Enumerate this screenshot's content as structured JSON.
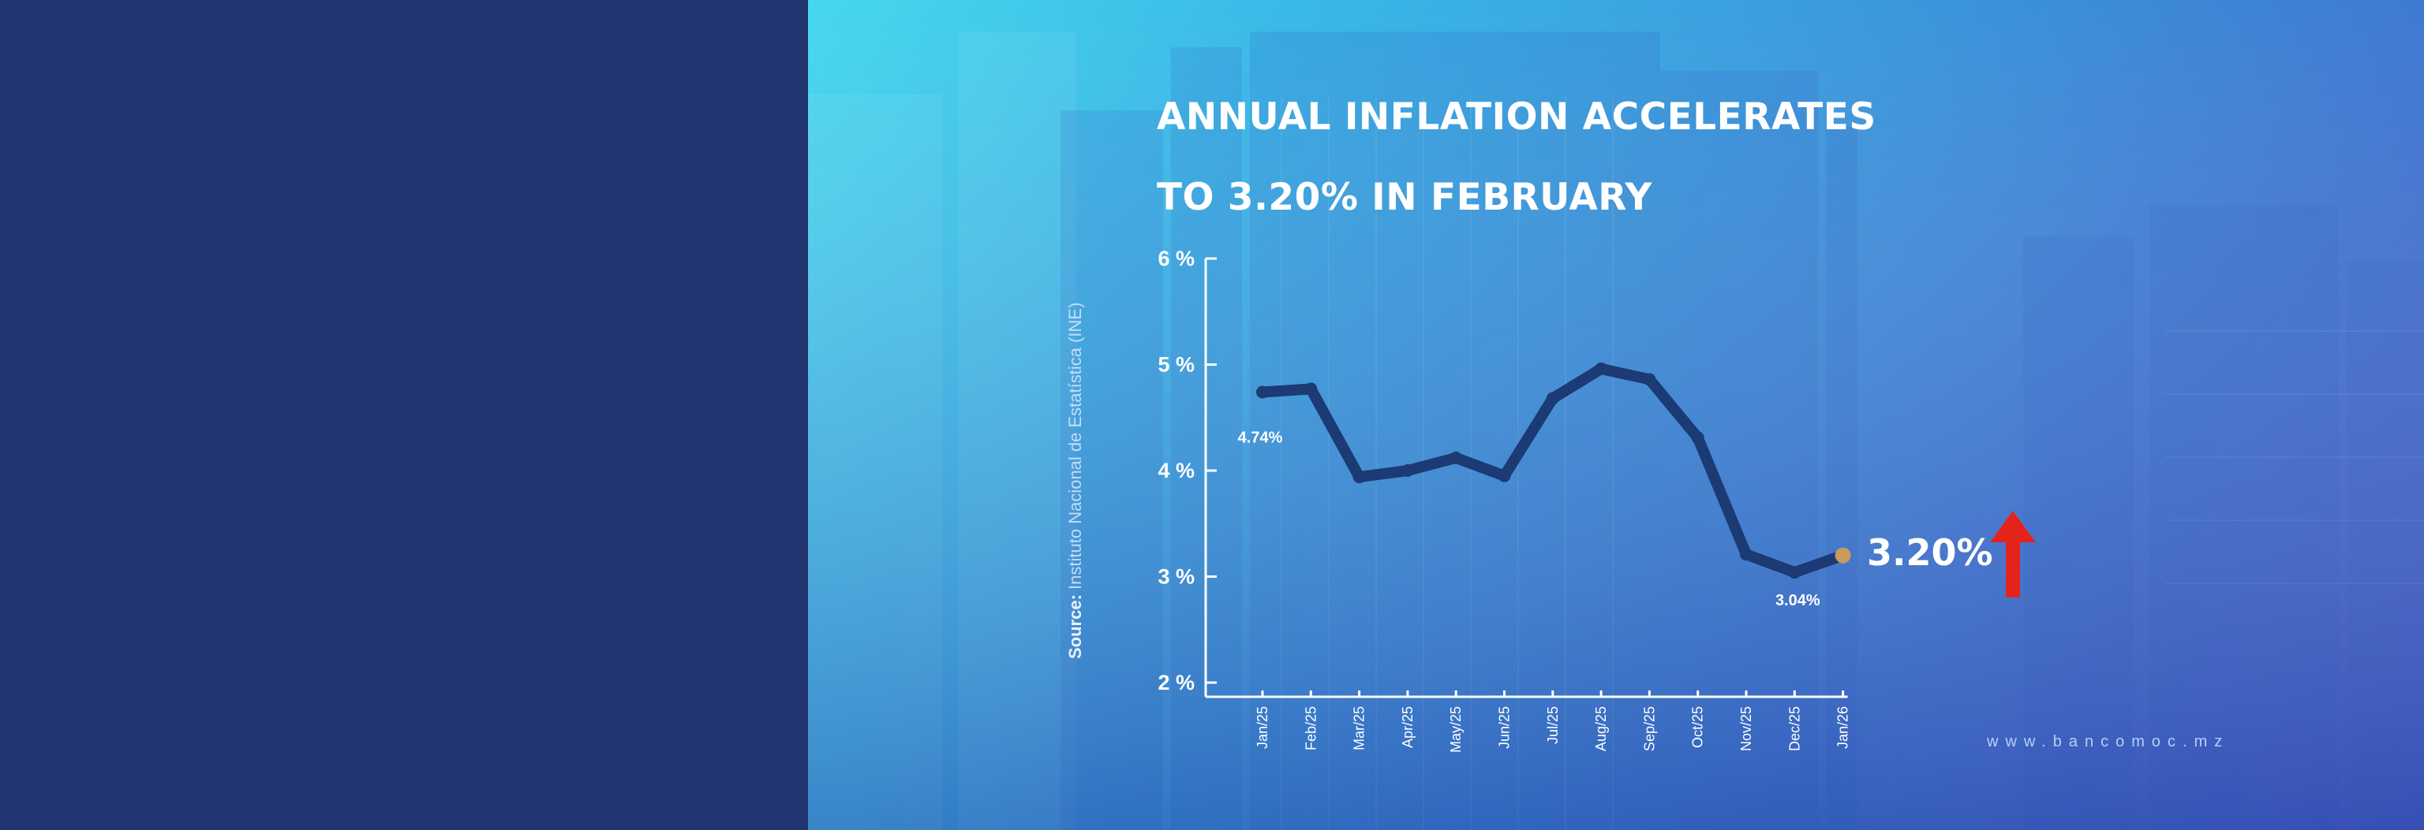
{
  "title_lines": [
    "ANNUAL INFLATION ACCELERATES",
    "TO 3.20% IN FEBRUARY"
  ],
  "source": {
    "label": "Source:",
    "text": "Instituto Nacional de Estatística (INE)"
  },
  "highlight": {
    "value": "3.20%",
    "direction": "up",
    "arrow_color": "#e3241b"
  },
  "footer_url": "www.bancomoc.mz",
  "colors": {
    "left_panel": "#223570",
    "line": "#1c3a73",
    "last_point": "#c99a5b"
  },
  "chart_data": {
    "type": "line",
    "x": [
      "Jan/25",
      "Feb/25",
      "Mar/25",
      "Apr/25",
      "May/25",
      "Jun/25",
      "Jul/25",
      "Aug/25",
      "Sep/25",
      "Oct/25",
      "Nov/25",
      "Dec/25",
      "Jan/26"
    ],
    "y_ticks": [
      "6 %",
      "5 %",
      "4 %",
      "3 %",
      "2 %"
    ],
    "ylim": [
      2,
      6
    ],
    "series": [
      {
        "values": [
          4.74,
          4.77,
          3.94,
          4.0,
          4.12,
          3.95,
          4.68,
          4.96,
          4.86,
          4.31,
          3.21,
          3.04,
          3.2
        ]
      }
    ],
    "point_labels": [
      {
        "index": 0,
        "text": "4.74%"
      },
      {
        "index": 11,
        "text": "3.04%"
      }
    ],
    "grid": false,
    "legend": "none"
  }
}
